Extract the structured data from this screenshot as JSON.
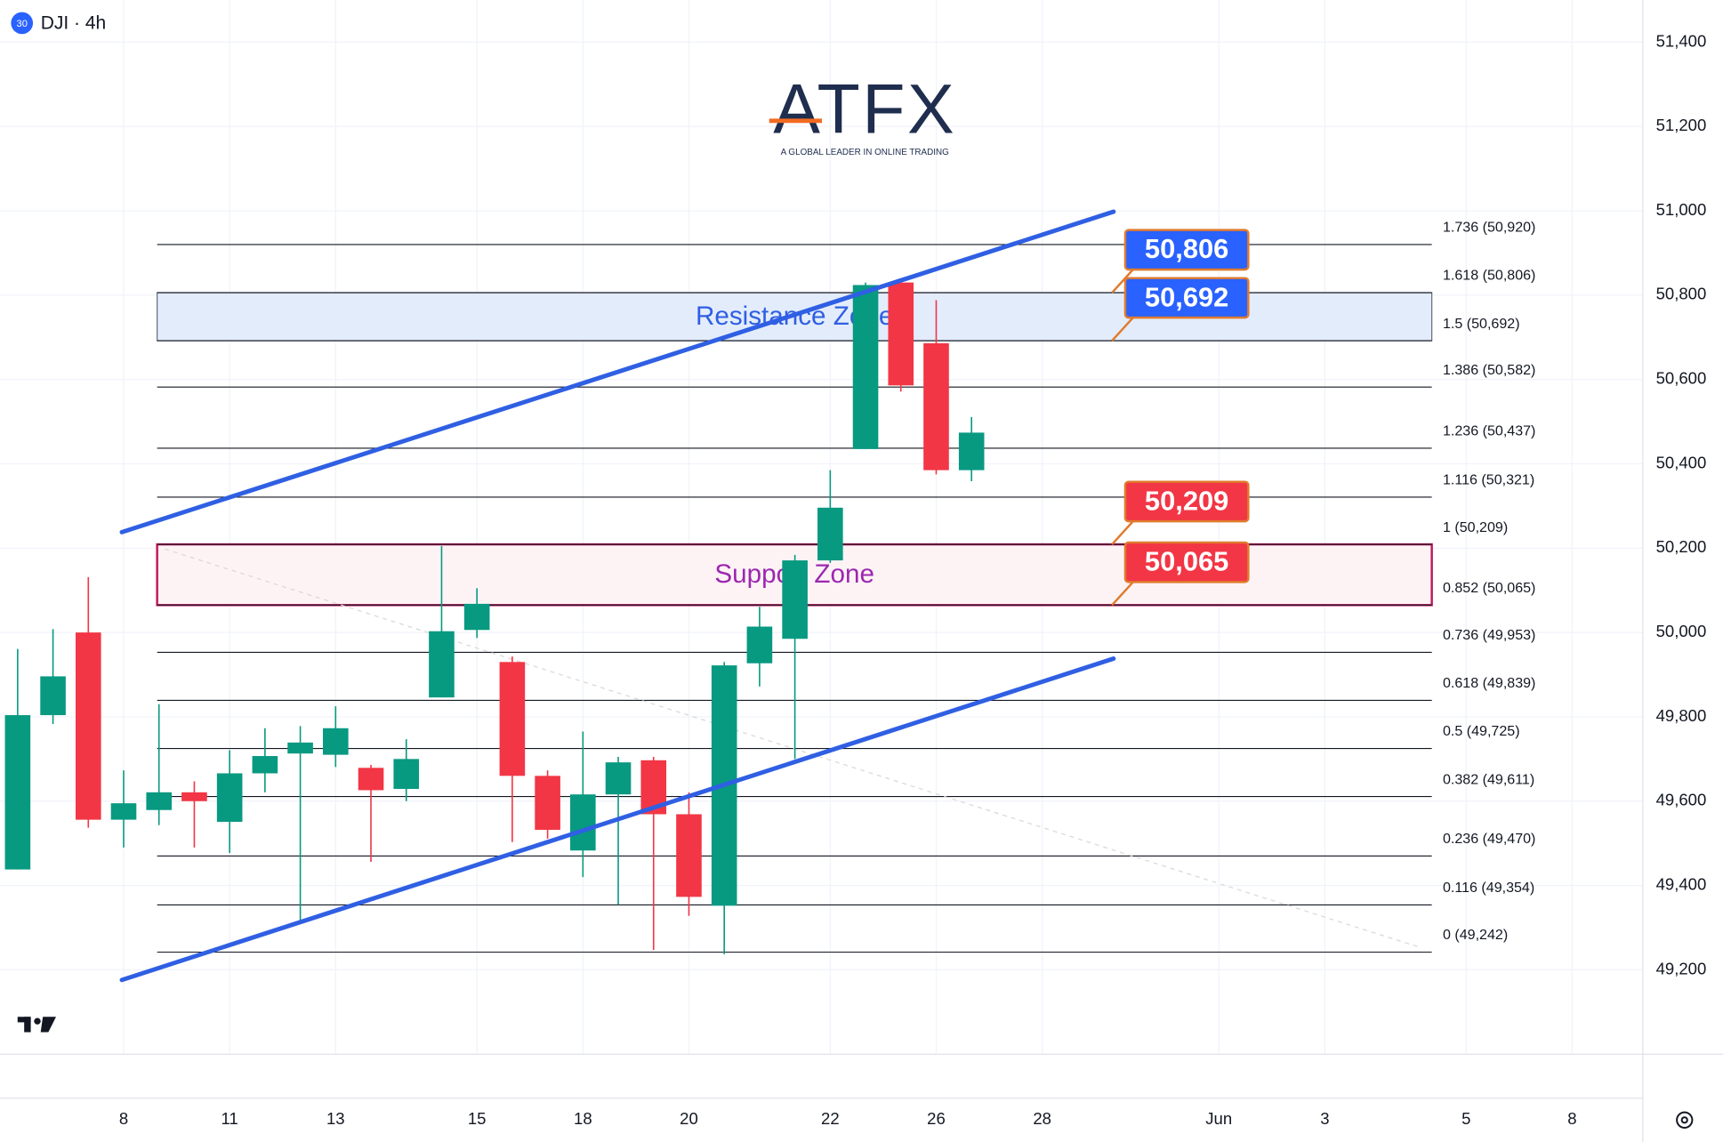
{
  "chart_data": {
    "type": "candlestick",
    "title": "DJI · 4h",
    "badge": "30",
    "logo": {
      "text": "ATFX",
      "tagline": "A GLOBAL LEADER IN ONLINE TRADING"
    },
    "xlim": [
      -0.5,
      46
    ],
    "ylim": [
      49000,
      51500
    ],
    "grid": true,
    "xticks": [
      {
        "value": 3,
        "label": "8"
      },
      {
        "value": 6,
        "label": "11"
      },
      {
        "value": 9,
        "label": "13"
      },
      {
        "value": 13,
        "label": "15"
      },
      {
        "value": 16,
        "label": "18"
      },
      {
        "value": 19,
        "label": "20"
      },
      {
        "value": 23,
        "label": "22"
      },
      {
        "value": 26,
        "label": "26"
      },
      {
        "value": 29,
        "label": "28"
      },
      {
        "value": 34,
        "label": "Jun"
      },
      {
        "value": 37,
        "label": "3"
      },
      {
        "value": 41,
        "label": "5"
      },
      {
        "value": 44,
        "label": "8"
      }
    ],
    "yticks": [
      {
        "value": 49200,
        "label": "49,200"
      },
      {
        "value": 49400,
        "label": "49,400"
      },
      {
        "value": 49600,
        "label": "49,600"
      },
      {
        "value": 49800,
        "label": "49,800"
      },
      {
        "value": 50000,
        "label": "50,000"
      },
      {
        "value": 50200,
        "label": "50,200"
      },
      {
        "value": 50400,
        "label": "50,400"
      },
      {
        "value": 50600,
        "label": "50,600"
      },
      {
        "value": 50800,
        "label": "50,800"
      },
      {
        "value": 51000,
        "label": "51,000"
      },
      {
        "value": 51200,
        "label": "51,200"
      },
      {
        "value": 51400,
        "label": "51,400"
      }
    ],
    "up_color": "#089981",
    "down_color": "#f23645",
    "candles": {
      "x": [
        0,
        1,
        2,
        3,
        4,
        5,
        6,
        7,
        8,
        9,
        10,
        11,
        12,
        13,
        14,
        15,
        16,
        17,
        18,
        19,
        20,
        21,
        22,
        23,
        24,
        25,
        26,
        27
      ],
      "open": [
        49438,
        49804,
        50000,
        49556,
        49579,
        49621,
        49551,
        49666,
        49713,
        49710,
        49679,
        49629,
        49846,
        50006,
        49930,
        49660,
        49483,
        49616,
        49697,
        49569,
        49352,
        49927,
        49985,
        50171,
        50435,
        50830,
        50686,
        50385
      ],
      "high": [
        49961,
        50008,
        50131,
        49673,
        49830,
        49647,
        49721,
        49773,
        49778,
        49825,
        49686,
        49747,
        50205,
        50105,
        49943,
        49673,
        49765,
        49705,
        49705,
        49621,
        49930,
        50061,
        50184,
        50385,
        50830,
        50830,
        50788,
        50511
      ],
      "low": [
        49438,
        49783,
        49537,
        49490,
        49543,
        49490,
        49477,
        49621,
        49312,
        49681,
        49456,
        49600,
        49846,
        49987,
        49503,
        49511,
        49420,
        49354,
        49247,
        49328,
        49237,
        49872,
        49700,
        50165,
        50435,
        50571,
        50375,
        50359
      ],
      "close": [
        49804,
        49896,
        49556,
        49595,
        49621,
        49600,
        49666,
        49707,
        49739,
        49773,
        49626,
        49700,
        50003,
        50068,
        49660,
        49532,
        49616,
        49692,
        49569,
        49373,
        49922,
        50014,
        50171,
        50296,
        50824,
        50586,
        50385,
        50474
      ]
    },
    "fib_levels": [
      {
        "value": 50920,
        "label": "1.736 (50,920)"
      },
      {
        "value": 50806,
        "label": "1.618 (50,806)"
      },
      {
        "value": 50692,
        "label": "1.5 (50,692)"
      },
      {
        "value": 50582,
        "label": "1.386 (50,582)"
      },
      {
        "value": 50437,
        "label": "1.236 (50,437)"
      },
      {
        "value": 50321,
        "label": "1.116 (50,321)"
      },
      {
        "value": 50209,
        "label": "1 (50,209)"
      },
      {
        "value": 50065,
        "label": "0.852 (50,065)"
      },
      {
        "value": 49953,
        "label": "0.736 (49,953)"
      },
      {
        "value": 49839,
        "label": "0.618 (49,839)"
      },
      {
        "value": 49725,
        "label": "0.5 (49,725)"
      },
      {
        "value": 49611,
        "label": "0.382 (49,611)"
      },
      {
        "value": 49470,
        "label": "0.236 (49,470)"
      },
      {
        "value": 49354,
        "label": "0.116 (49,354)"
      },
      {
        "value": 49242,
        "label": "0 (49,242)"
      }
    ],
    "zones": [
      {
        "label": "Resistance Zone",
        "from": 50692,
        "to": 50806,
        "fill": "#e3ecfb",
        "stroke": "#6b6f7a",
        "text_color": "#2f5fe3"
      },
      {
        "label": "Support Zone",
        "from": 50065,
        "to": 50209,
        "fill": "#fdf3f5",
        "stroke": "#c2185b",
        "text_color": "#9c27b0"
      }
    ],
    "callouts": [
      {
        "value": 50806,
        "label": "50,806",
        "color": "#2962ff"
      },
      {
        "value": 50692,
        "label": "50,692",
        "color": "#2962ff"
      },
      {
        "value": 50209,
        "label": "50,209",
        "color": "#f23645"
      },
      {
        "value": 50065,
        "label": "50,065",
        "color": "#f23645"
      }
    ],
    "channels": [
      {
        "x": [
          2.95,
          31.02
        ],
        "y": [
          50238,
          50998
        ],
        "color": "#2f5fe3"
      },
      {
        "x": [
          2.95,
          31.02
        ],
        "y": [
          49176,
          49938
        ],
        "color": "#2f5fe3"
      }
    ]
  }
}
